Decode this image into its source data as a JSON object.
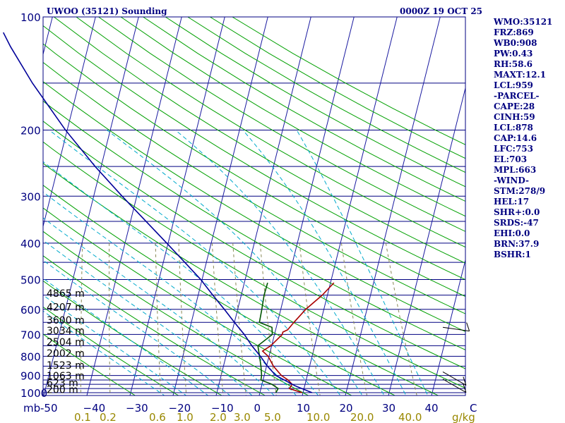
{
  "chart_data": {
    "type": "line",
    "title_left": "UWOO (35121) Sounding",
    "title_right": "0000Z 19 OCT 25",
    "pressure_axis": {
      "unit_label": "mb",
      "ticks": [
        100,
        200,
        300,
        400,
        500,
        600,
        700,
        800,
        900,
        1000
      ],
      "range": [
        1000,
        100
      ]
    },
    "temperature_axis": {
      "ticks": [
        -50,
        -40,
        -30,
        -20,
        -10,
        0,
        10,
        20,
        30,
        40,
        50
      ],
      "tick_labels": [
        "-50",
        "−40",
        "−30",
        "−20",
        "−10",
        "0",
        "10",
        "20",
        "30",
        "40",
        " C"
      ],
      "range": [
        -50,
        50
      ]
    },
    "mixing_ratio_axis": {
      "unit_label": "g/kg",
      "ticks": [
        0.1,
        0.2,
        0.6,
        1.0,
        2.0,
        3.0,
        5.0,
        10.0,
        20.0,
        40.0
      ],
      "tick_labels": [
        "0.1",
        "0.2",
        "0.6",
        "1.0",
        "2.0",
        "3.0",
        "5.0",
        "10.0",
        "20.0",
        "40.0"
      ]
    },
    "height_labels": [
      {
        "p": 560,
        "label": "4865 m"
      },
      {
        "p": 610,
        "label": "4207 m"
      },
      {
        "p": 660,
        "label": "3600 m"
      },
      {
        "p": 705,
        "label": "3034 m"
      },
      {
        "p": 755,
        "label": "2504 m"
      },
      {
        "p": 810,
        "label": "2002 m"
      },
      {
        "p": 870,
        "label": "1523 m"
      },
      {
        "p": 930,
        "label": "1063 m"
      },
      {
        "p": 970,
        "label": "623 m"
      },
      {
        "p": 1010,
        "label": "200 m"
      }
    ],
    "series": [
      {
        "name": "Temperature",
        "color": "#aa0000",
        "points": [
          [
            1000,
            9.8
          ],
          [
            975,
            6.6
          ],
          [
            950,
            7.0
          ],
          [
            925,
            5.8
          ],
          [
            900,
            4.0
          ],
          [
            850,
            1.6
          ],
          [
            800,
            -0.2
          ],
          [
            775,
            -1.8
          ],
          [
            750,
            -0.2
          ],
          [
            700,
            1.8
          ],
          [
            690,
            1.8
          ],
          [
            680,
            2.8
          ],
          [
            650,
            3.8
          ],
          [
            600,
            5.8
          ],
          [
            550,
            8.8
          ],
          [
            510,
            10.8
          ]
        ]
      },
      {
        "name": "Dewpoint",
        "color": "#005500",
        "points": [
          [
            1000,
            3.7
          ],
          [
            975,
            4.0
          ],
          [
            950,
            2.3
          ],
          [
            925,
            -0.5
          ],
          [
            900,
            -0.6
          ],
          [
            850,
            -1.3
          ],
          [
            800,
            -2.2
          ],
          [
            750,
            -3.2
          ],
          [
            700,
            -0.5
          ],
          [
            670,
            -1.0
          ],
          [
            650,
            -4.2
          ],
          [
            600,
            -4.4
          ],
          [
            550,
            -4.7
          ],
          [
            510,
            -4.6
          ]
        ]
      },
      {
        "name": "Parcel",
        "color": "#000099",
        "points": [
          [
            1000,
            12.1
          ],
          [
            959,
            7.8
          ],
          [
            900,
            2.7
          ],
          [
            850,
            0.2
          ],
          [
            800,
            -2.0
          ],
          [
            750,
            -4.6
          ],
          [
            700,
            -7.0
          ],
          [
            650,
            -10.0
          ],
          [
            600,
            -13.1
          ],
          [
            550,
            -16.6
          ],
          [
            500,
            -20.3
          ],
          [
            450,
            -25.0
          ],
          [
            400,
            -30.3
          ],
          [
            350,
            -36.4
          ],
          [
            300,
            -43.4
          ],
          [
            250,
            -51.4
          ],
          [
            200,
            -60.4
          ],
          [
            150,
            -70.8
          ],
          [
            120,
            -78.0
          ],
          [
            110,
            -80.5
          ]
        ]
      }
    ],
    "wind_barbs": [
      {
        "p": 670,
        "direction": 278,
        "speed": 15
      },
      {
        "p": 880,
        "direction": 300,
        "speed": 10
      },
      {
        "p": 920,
        "direction": 300,
        "speed": 10
      }
    ]
  },
  "params": [
    "WMO:35121",
    "FRZ:869",
    "WB0:908",
    "PW:0.43",
    "RH:58.6",
    "MAXT:12.1",
    "LCL:959",
    "-PARCEL-",
    "CAPE:28",
    "CINH:59",
    "LCL:878",
    "CAP:14.6",
    "LFC:753",
    "EL:703",
    "MPL:663",
    "-WIND-",
    "STM:278/9",
    "HEL:17",
    "SHR+:0.0",
    "SRDS:-47",
    "EHI:0.0",
    "BRN:37.9",
    "BSHR:1"
  ],
  "colors": {
    "isobar": "#000080",
    "isotherm": "#1a1aa0",
    "dry_adiabat": "#00a000",
    "moist_adiabat": "#00aacc",
    "mixing_ratio": "#888855",
    "text": "#000080",
    "bottom_text": "#998800",
    "wind": "#000000"
  }
}
